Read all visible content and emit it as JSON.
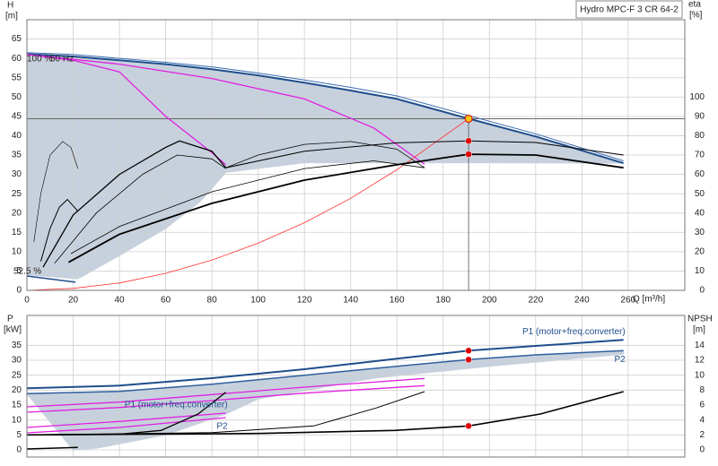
{
  "chart_data": [
    {
      "type": "line",
      "title": "Hydro MPC-F 3 CR 64-2",
      "ylabel": "H",
      "yunit": "[m]",
      "y2label": "eta",
      "y2unit": "[%]",
      "xlabel": "Q [m³/h]",
      "xlim": [
        0,
        284.5
      ],
      "xticks": [
        0,
        20,
        40,
        60,
        80,
        100,
        120,
        140,
        160,
        180,
        200,
        220,
        240,
        260
      ],
      "ylim": [
        0,
        70
      ],
      "yticks": [
        0,
        5,
        10,
        15,
        20,
        25,
        30,
        35,
        40,
        45,
        50,
        55,
        60,
        65
      ],
      "y2lim": [
        0,
        140
      ],
      "y2ticks": [
        0,
        10,
        20,
        30,
        40,
        50,
        60,
        70,
        80,
        90,
        100
      ],
      "grid": true,
      "annotations": [
        "100 %",
        "50 Hz",
        "52.5 %"
      ],
      "series": [
        {
          "color": "#c7d1dd",
          "fill": "#c7d1dd",
          "width": 1,
          "x": [
            0,
            20,
            40,
            60,
            80,
            100,
            120,
            140,
            160,
            191,
            220,
            258,
            258,
            200,
            160,
            120,
            86,
            75,
            60,
            40,
            22,
            0
          ],
          "values": [
            61.1,
            60.5,
            59.5,
            58.5,
            57.2,
            55.6,
            53.7,
            51.7,
            49.5,
            44.4,
            39.8,
            32.9,
            32.9,
            33,
            33,
            33,
            30.5,
            23,
            16,
            9,
            3,
            4
          ]
        },
        {
          "color": "#1f4e8c",
          "width": 2,
          "x": [
            0,
            20,
            40,
            60,
            80,
            100,
            120,
            140,
            160,
            191,
            220,
            258
          ],
          "values": [
            61.1,
            60.5,
            59.5,
            58.5,
            57.2,
            55.6,
            53.7,
            51.7,
            49.5,
            44.4,
            39.8,
            32.9
          ]
        },
        {
          "color": "#3a6db0",
          "width": 1,
          "x": [
            0,
            20,
            40,
            60,
            80,
            100,
            120,
            140,
            160,
            191,
            220,
            258
          ],
          "values": [
            61.5,
            61,
            60,
            59,
            57.8,
            56.2,
            54.4,
            52.5,
            50.3,
            45.2,
            40.5,
            33.5
          ]
        },
        {
          "color": "#e020e0",
          "width": 1.3,
          "x": [
            0,
            20,
            40,
            60,
            80,
            86
          ],
          "values": [
            61,
            59.5,
            56.5,
            45,
            35.6,
            32.5
          ]
        },
        {
          "color": "#e020e0",
          "width": 1.3,
          "x": [
            0,
            40,
            80,
            120,
            150,
            172
          ],
          "values": [
            61,
            58.5,
            54.8,
            49.5,
            42,
            32.6
          ]
        },
        {
          "color": "#1f4e8c",
          "width": 1.5,
          "x": [
            0,
            21
          ],
          "values": [
            3.7,
            2.1
          ]
        },
        {
          "color": "#ff3030",
          "width": 0.8,
          "x": [
            0,
            20,
            40,
            60,
            80,
            100,
            120,
            140,
            160,
            191
          ],
          "values": [
            0,
            0.5,
            1.9,
            4.4,
            7.8,
            12.2,
            17.5,
            23.8,
            31.2,
            44.4
          ]
        },
        {
          "color": "#000",
          "width": 0.6,
          "axis": "y2",
          "x": [
            3,
            6,
            10,
            15.5,
            19,
            22
          ],
          "values": [
            25,
            50,
            70,
            77,
            74,
            63
          ]
        },
        {
          "color": "#000",
          "width": 1,
          "axis": "y2",
          "x": [
            6,
            10,
            14,
            17.5,
            22
          ],
          "values": [
            15,
            32,
            43,
            47,
            41
          ]
        },
        {
          "color": "#000",
          "width": 1.3,
          "axis": "y2",
          "x": [
            7,
            20,
            40,
            60,
            66,
            80,
            86
          ],
          "values": [
            12,
            39,
            60,
            74,
            77.3,
            72,
            63.4
          ]
        },
        {
          "color": "#000",
          "width": 0.8,
          "axis": "y2",
          "x": [
            12,
            30,
            50,
            65,
            80,
            86
          ],
          "values": [
            14,
            40,
            60,
            70,
            68,
            63
          ]
        },
        {
          "color": "#000",
          "width": 0.7,
          "axis": "y2",
          "x": [
            86,
            100,
            120,
            140,
            160,
            172
          ],
          "values": [
            63.4,
            70,
            75.5,
            77,
            73,
            63.4
          ]
        },
        {
          "color": "#000",
          "width": 1.8,
          "axis": "y2",
          "x": [
            18,
            40,
            80,
            120,
            160,
            191,
            220,
            258
          ],
          "values": [
            14.5,
            29,
            45,
            57,
            65,
            70.4,
            70,
            63.4
          ]
        },
        {
          "color": "#000",
          "width": 1,
          "axis": "y2",
          "x": [
            86,
            120,
            160,
            191,
            220,
            258
          ],
          "values": [
            63.4,
            72,
            76.3,
            77.3,
            76.5,
            70
          ]
        },
        {
          "color": "#000",
          "width": 0.8,
          "axis": "y2",
          "x": [
            19,
            40,
            80,
            120,
            150,
            172
          ],
          "values": [
            19,
            33,
            51,
            63,
            67,
            63.4
          ]
        }
      ],
      "duty_point": {
        "x": 191,
        "y": 44.4,
        "color": "#f5c518"
      },
      "points": [
        {
          "x": 191,
          "y": 77.3,
          "axis": "y2",
          "color": "#e00000"
        },
        {
          "x": 191,
          "y": 70.4,
          "axis": "y2",
          "color": "#e00000"
        }
      ]
    },
    {
      "type": "line",
      "ylabel": "P",
      "yunit": "[kW]",
      "y2label": "NPSH",
      "y2unit": "[m]",
      "xlim": [
        0,
        284.5
      ],
      "ylim": [
        -2.4,
        45
      ],
      "yticks": [
        0,
        5,
        10,
        15,
        20,
        25,
        30,
        35
      ],
      "y2lim": [
        -0.96,
        18
      ],
      "y2ticks": [
        0,
        2,
        4,
        6,
        8,
        10,
        12,
        14
      ],
      "grid": true,
      "label_color": "#1f4e8c",
      "series": [
        {
          "color": "#c7d1dd",
          "fill": "#c7d1dd",
          "width": 1,
          "x": [
            0,
            40,
            80,
            120,
            160,
            191,
            220,
            258,
            258,
            200,
            150,
            100,
            86,
            60,
            30,
            20
          ],
          "values": [
            18.8,
            19.6,
            22,
            25,
            28,
            30.2,
            31.8,
            33.2,
            32,
            28,
            24,
            17,
            12,
            5,
            0.5,
            0
          ]
        },
        {
          "name": "P1 (motor+freq.converter)",
          "label_side": "above",
          "color": "#1f4e8c",
          "width": 2,
          "x": [
            0,
            40,
            80,
            120,
            160,
            191,
            220,
            258
          ],
          "values": [
            20.6,
            21.5,
            24,
            27,
            30.5,
            33.2,
            34.8,
            36.8
          ]
        },
        {
          "name": "P2",
          "label_side": "below",
          "color": "#2f5f9f",
          "width": 1.5,
          "x": [
            0,
            40,
            80,
            120,
            160,
            191,
            220,
            258
          ],
          "values": [
            18.8,
            19.6,
            22,
            25,
            28,
            30.2,
            31.8,
            33.2
          ]
        },
        {
          "color": "#e020e0",
          "width": 1.3,
          "x": [
            0,
            40,
            80,
            120,
            172
          ],
          "values": [
            14.4,
            16,
            18.5,
            21,
            23.9
          ]
        },
        {
          "color": "#e020e0",
          "width": 1.3,
          "x": [
            0,
            40,
            80,
            120,
            172
          ],
          "values": [
            12.6,
            14.2,
            16.5,
            19,
            21.5
          ]
        },
        {
          "name": "P1 (motor+freq.converter)",
          "label_side": "above",
          "color": "#e020e0",
          "width": 1.3,
          "x": [
            0,
            40,
            86
          ],
          "values": [
            7.5,
            9.5,
            12.3
          ]
        },
        {
          "name": "P2",
          "label_side": "below",
          "color": "#e020e0",
          "width": 1.3,
          "x": [
            0,
            40,
            86
          ],
          "values": [
            5.7,
            7.5,
            10.8
          ]
        },
        {
          "color": "#000",
          "width": 1.5,
          "x": [
            0,
            22
          ],
          "values": [
            0.3,
            0.8
          ]
        },
        {
          "color": "#000",
          "width": 1.3,
          "axis": "y2",
          "x": [
            0,
            40,
            58,
            74,
            86
          ],
          "values": [
            2,
            2.1,
            2.6,
            4.8,
            7.7
          ]
        },
        {
          "color": "#000",
          "width": 1,
          "axis": "y2",
          "x": [
            0,
            80,
            124,
            151,
            172
          ],
          "values": [
            2,
            2.3,
            3.2,
            5.6,
            7.8
          ]
        },
        {
          "color": "#000",
          "width": 1.6,
          "axis": "y2",
          "x": [
            0,
            100,
            159,
            191,
            222,
            258
          ],
          "values": [
            2,
            2.2,
            2.6,
            3.2,
            4.8,
            7.8
          ]
        }
      ],
      "points": [
        {
          "x": 191,
          "y": 33.2,
          "color": "#e00000"
        },
        {
          "x": 191,
          "y": 30.2,
          "color": "#e00000"
        },
        {
          "x": 191,
          "y": 3.2,
          "axis": "y2",
          "color": "#e00000"
        }
      ]
    }
  ]
}
